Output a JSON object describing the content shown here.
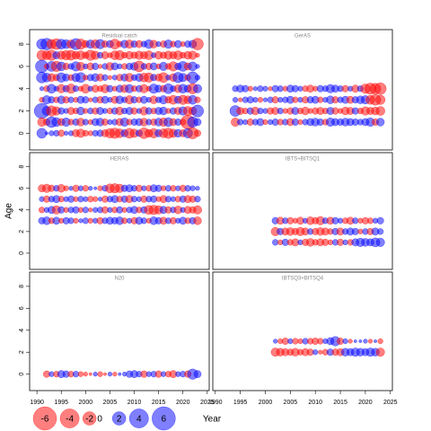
{
  "chart_data": [
    {
      "type": "bubble",
      "title": "Residual catch",
      "xlim": [
        1988.5,
        2025.4
      ],
      "ylim": [
        -1.5,
        9.3
      ],
      "yticks": [
        0,
        2,
        4,
        6,
        8
      ],
      "x": [
        1991,
        1992,
        1993,
        1994,
        1995,
        1996,
        1997,
        1998,
        1999,
        2000,
        2001,
        2002,
        2003,
        2004,
        2005,
        2006,
        2007,
        2008,
        2009,
        2010,
        2011,
        2012,
        2013,
        2014,
        2015,
        2016,
        2017,
        2018,
        2019,
        2020,
        2021,
        2022,
        2023
      ],
      "rows": [
        {
          "y": 8,
          "values": [
            1.2,
            1.5,
            -1.0,
            -1.3,
            1.1,
            0.9,
            -0.8,
            1.4,
            -1.2,
            -0.6,
            0.8,
            -0.9,
            1.0,
            -0.5,
            0.6,
            -1.1,
            -0.4,
            0.7,
            -0.8,
            0.5,
            -0.6,
            0.4,
            0.9,
            -0.7,
            0.3,
            -0.5,
            0.8,
            -0.4,
            0.6,
            -0.3,
            0.5,
            0.7,
            -1.5
          ]
        },
        {
          "y": 7,
          "values": [
            -1.1,
            -0.9,
            -1.2,
            0.6,
            -0.8,
            -1.0,
            -1.1,
            -0.7,
            -0.9,
            -0.5,
            -1.2,
            -0.8,
            0.4,
            -0.6,
            -0.3,
            -0.9,
            -1.0,
            -0.4,
            -0.7,
            -0.5,
            -0.8,
            -0.6,
            -0.9,
            0.3,
            -0.7,
            -0.5,
            -0.8,
            -0.6,
            -0.9,
            -0.4,
            -0.7,
            -0.8,
            -0.2
          ]
        },
        {
          "y": 6,
          "values": [
            1.8,
            -0.3,
            1.1,
            -1.2,
            0.9,
            -0.5,
            0.4,
            1.0,
            -0.8,
            0.3,
            -0.6,
            0.5,
            -0.2,
            0.4,
            -0.7,
            0.6,
            0.3,
            -0.4,
            0.5,
            0.7,
            -1.3,
            0.4,
            -0.5,
            0.6,
            -0.3,
            0.8,
            -0.4,
            -1.0,
            0.5,
            1.1,
            -0.6,
            0.9,
            0.2
          ]
        },
        {
          "y": 5,
          "values": [
            1.3,
            0.9,
            -0.7,
            -0.5,
            1.0,
            0.6,
            -0.4,
            0.8,
            1.1,
            -0.3,
            0.5,
            0.7,
            -0.6,
            0.4,
            -0.2,
            0.3,
            -0.5,
            0.6,
            -0.8,
            0.4,
            0.7,
            -0.9,
            -1.0,
            0.5,
            -0.6,
            -1.1,
            0.3,
            -0.7,
            1.2,
            0.8,
            -0.4,
            1.5,
            0.3
          ]
        },
        {
          "y": 4,
          "values": [
            0.2,
            -0.4,
            0.9,
            0.3,
            -0.8,
            0.5,
            -1.0,
            0.4,
            -0.3,
            -0.9,
            0.3,
            -0.6,
            -0.4,
            -0.8,
            0.5,
            -0.3,
            0.6,
            -0.7,
            0.8,
            -0.4,
            0.5,
            -0.8,
            -0.3,
            1.0,
            0.6,
            -0.5,
            1.1,
            0.4,
            -0.7,
            0.9,
            0.6,
            -1.2,
            0.8
          ]
        },
        {
          "y": 3,
          "values": [
            -0.3,
            0.8,
            0.5,
            -0.4,
            0.7,
            -0.5,
            0.4,
            -0.3,
            0.6,
            0.5,
            -0.2,
            0.4,
            -0.5,
            0.6,
            0.3,
            -0.6,
            0.7,
            0.4,
            -0.8,
            0.5,
            -0.4,
            0.6,
            0.3,
            -0.7,
            0.4,
            0.8,
            -0.5,
            -0.9,
            0.6,
            -1.0,
            -0.7,
            0.9,
            -0.4
          ]
        },
        {
          "y": 2,
          "values": [
            2.5,
            0.9,
            -1.2,
            -0.8,
            0.5,
            0.3,
            -0.6,
            -0.4,
            0.7,
            -0.3,
            0.4,
            -0.5,
            0.6,
            0.3,
            -0.4,
            0.5,
            -0.7,
            0.4,
            0.6,
            -0.5,
            0.3,
            -0.8,
            0.5,
            -0.4,
            0.6,
            0.7,
            -0.3,
            0.5,
            -0.6,
            0.8,
            -0.9,
            -0.7,
            1.6
          ]
        },
        {
          "y": 1,
          "values": [
            -0.8,
            -0.5,
            1.3,
            0.9,
            -0.6,
            0.8,
            -0.4,
            0.5,
            -0.7,
            0.4,
            -0.3,
            0.6,
            0.7,
            -0.5,
            0.3,
            0.4,
            -0.6,
            0.8,
            -0.4,
            0.5,
            0.6,
            -0.7,
            0.4,
            -0.5,
            0.7,
            -0.8,
            0.9,
            -0.6,
            0.5,
            -0.4,
            -2.2,
            1.2,
            0.6
          ]
        },
        {
          "y": 0,
          "values": [
            1.1,
            0.1,
            0.3,
            0.4,
            -0.5,
            0.2,
            0.3,
            -0.6,
            -0.8,
            -0.4,
            -0.3,
            0.4,
            0.5,
            -0.6,
            -1.0,
            -1.2,
            -0.9,
            0.6,
            -1.1,
            -0.8,
            0.5,
            -1.3,
            -0.7,
            -1.0,
            0.6,
            -0.9,
            -1.2,
            -0.8,
            0.7,
            -0.6,
            1.0,
            -1.4,
            -0.5
          ]
        }
      ]
    },
    {
      "type": "bubble",
      "title": "GerAS",
      "xlim": [
        1989.5,
        2025.4
      ],
      "ylim": [
        -1.5,
        9.3
      ],
      "x": [
        1994,
        1995,
        1996,
        1997,
        1998,
        1999,
        2000,
        2001,
        2002,
        2003,
        2004,
        2005,
        2006,
        2007,
        2008,
        2009,
        2010,
        2011,
        2012,
        2013,
        2014,
        2015,
        2016,
        2017,
        2018,
        2019,
        2020,
        2021,
        2022,
        2023
      ],
      "rows": [
        {
          "y": 4,
          "values": [
            0.4,
            0.6,
            0.5,
            -0.3,
            0.2,
            0.4,
            0.3,
            -0.2,
            0.5,
            0.4,
            -0.3,
            0.6,
            0.5,
            0.3,
            -0.4,
            -0.6,
            -0.3,
            0.5,
            0.4,
            0.8,
            0.6,
            0.4,
            -0.5,
            0.3,
            -0.6,
            0.4,
            -1.0,
            -1.4,
            -1.3,
            -1.5
          ]
        },
        {
          "y": 3,
          "values": [
            0.3,
            -0.2,
            0.4,
            0.5,
            0.3,
            -0.3,
            0.2,
            0.4,
            -0.5,
            0.3,
            0.4,
            0.6,
            -0.4,
            0.3,
            -0.5,
            0.5,
            0.6,
            -0.4,
            0.3,
            0.7,
            -0.5,
            0.4,
            0.6,
            -0.6,
            0.5,
            0.7,
            0.8,
            -0.9,
            -1.3,
            -1.0
          ]
        },
        {
          "y": 2,
          "values": [
            1.3,
            -0.6,
            -0.4,
            0.5,
            -0.7,
            0.4,
            0.3,
            -0.5,
            -0.6,
            0.4,
            -0.3,
            -0.5,
            0.6,
            -0.4,
            -0.7,
            -0.3,
            -0.5,
            -0.6,
            -0.4,
            0.6,
            -0.5,
            -0.3,
            -0.7,
            -0.6,
            0.5,
            -0.4,
            -0.8,
            -0.6,
            -0.7,
            -0.9
          ]
        },
        {
          "y": 1,
          "values": [
            -0.8,
            0.4,
            0.3,
            -0.5,
            0.4,
            0.6,
            -0.3,
            0.3,
            0.5,
            -0.4,
            0.4,
            -0.6,
            0.5,
            -0.3,
            0.4,
            0.6,
            0.7,
            0.5,
            -0.4,
            0.8,
            0.6,
            0.5,
            0.7,
            0.6,
            0.5,
            0.4,
            0.6,
            0.8,
            -0.5,
            0.7
          ]
        }
      ]
    },
    {
      "type": "bubble",
      "title": "HERAS",
      "xlim": [
        1988.5,
        2025.4
      ],
      "ylim": [
        -1.5,
        9.3
      ],
      "yticks": [
        0,
        2,
        4,
        6,
        8
      ],
      "x": [
        1991,
        1992,
        1993,
        1994,
        1995,
        1996,
        1997,
        1998,
        1999,
        2000,
        2001,
        2002,
        2003,
        2004,
        2005,
        2006,
        2007,
        2008,
        2009,
        2010,
        2011,
        2012,
        2013,
        2014,
        2015,
        2016,
        2017,
        2018,
        2019,
        2020,
        2021,
        2022,
        2023
      ],
      "rows": [
        {
          "y": 6,
          "values": [
            -0.6,
            -0.8,
            -0.5,
            0.4,
            -0.7,
            -0.3,
            0.2,
            -0.5,
            0.3,
            -0.4,
            0.2,
            0.1,
            -0.3,
            0.4,
            -0.9,
            -1.0,
            -0.8,
            0.5,
            0.6,
            0.4,
            -0.5,
            0.3,
            -0.4,
            0.6,
            0.5,
            -0.3,
            0.4,
            -0.4,
            0.3,
            -0.5,
            0.4,
            0.3,
            0.2
          ]
        },
        {
          "y": 5,
          "values": [
            0.3,
            -0.5,
            0.4,
            0.6,
            -0.4,
            0.3,
            0.5,
            -0.3,
            0.4,
            0.3,
            -0.4,
            -0.3,
            0.2,
            -0.5,
            0.4,
            0.6,
            -0.4,
            0.5,
            -0.6,
            0.4,
            0.3,
            -0.5,
            0.4,
            0.5,
            -0.3,
            -0.6,
            0.4,
            0.3,
            -0.4,
            0.5,
            -0.6,
            -0.5,
            0.4
          ]
        },
        {
          "y": 4,
          "values": [
            -0.4,
            0.3,
            0.6,
            -0.8,
            0.5,
            -0.3,
            0.4,
            0.5,
            -0.3,
            0.4,
            -0.2,
            0.3,
            0.4,
            -0.5,
            0.3,
            -0.4,
            0.5,
            -0.3,
            0.4,
            0.6,
            -0.4,
            0.5,
            -0.9,
            -1.0,
            -0.8,
            0.6,
            -0.5,
            0.4,
            -0.7,
            0.3,
            -0.6,
            -0.5,
            -0.8
          ]
        },
        {
          "y": 3,
          "values": [
            0.5,
            0.7,
            -0.4,
            0.6,
            -0.3,
            0.5,
            0.4,
            -0.3,
            0.2,
            0.4,
            -0.3,
            0.3,
            -0.5,
            0.4,
            0.6,
            0.5,
            0.7,
            -0.4,
            0.3,
            -0.5,
            0.6,
            0.4,
            -0.3,
            0.7,
            0.5,
            -0.6,
            0.4,
            -0.5,
            0.3,
            0.6,
            -0.4,
            0.5,
            -0.7
          ]
        }
      ]
    },
    {
      "type": "bubble",
      "title": "IBTS+BITSQ1",
      "xlim": [
        1989.5,
        2025.4
      ],
      "ylim": [
        -1.5,
        9.3
      ],
      "x": [
        2002,
        2003,
        2004,
        2005,
        2006,
        2007,
        2008,
        2009,
        2010,
        2011,
        2012,
        2013,
        2014,
        2015,
        2016,
        2017,
        2018,
        2019,
        2020,
        2021,
        2022,
        2023
      ],
      "rows": [
        {
          "y": 3,
          "values": [
            0.5,
            -0.6,
            0.4,
            -0.5,
            -0.3,
            -0.6,
            0.3,
            -0.7,
            -0.5,
            -0.8,
            0.4,
            -0.6,
            0.5,
            0.3,
            -0.4,
            -0.6,
            0.4,
            -0.3,
            -0.5,
            -0.4,
            0.3,
            0.5
          ]
        },
        {
          "y": 2,
          "values": [
            -0.8,
            0.5,
            -0.6,
            -0.7,
            -0.5,
            -0.8,
            -0.6,
            0.4,
            -0.5,
            -0.7,
            -0.6,
            -0.4,
            0.5,
            -0.6,
            0.4,
            0.6,
            0.5,
            -0.3,
            0.4,
            -0.5,
            0.6,
            0.4
          ]
        },
        {
          "y": 1,
          "values": [
            0.4,
            -0.3,
            0.5,
            -0.4,
            -0.6,
            0.3,
            -0.5,
            -0.7,
            -0.4,
            -0.6,
            -0.5,
            -0.3,
            0.4,
            -0.5,
            0.3,
            -0.4,
            0.6,
            0.8,
            0.7,
            0.6,
            0.9,
            0.8
          ]
        }
      ]
    },
    {
      "type": "bubble",
      "title": "N20",
      "xlim": [
        1988.5,
        2025.4
      ],
      "ylim": [
        -1.5,
        9.3
      ],
      "yticks": [
        0,
        2,
        4,
        6,
        8
      ],
      "xticks": [
        1990,
        1995,
        2000,
        2005,
        2010,
        2015,
        2020,
        2025
      ],
      "x": [
        1992,
        1993,
        1994,
        1995,
        1996,
        1997,
        1998,
        1999,
        2000,
        2001,
        2002,
        2003,
        2004,
        2005,
        2006,
        2007,
        2008,
        2009,
        2010,
        2011,
        2012,
        2013,
        2014,
        2015,
        2016,
        2017,
        2018,
        2019,
        2020,
        2021,
        2022,
        2023
      ],
      "rows": [
        {
          "y": 0,
          "values": [
            -0.5,
            0.3,
            -0.4,
            0.6,
            0.5,
            -0.4,
            0.4,
            -0.3,
            -0.2,
            -0.1,
            0.2,
            -0.3,
            -0.1,
            0.2,
            -0.2,
            0.1,
            0.2,
            0.5,
            0.6,
            0.4,
            -0.5,
            0.3,
            0.4,
            -0.5,
            0.3,
            -0.4,
            -0.6,
            0.3,
            0.4,
            -0.5,
            1.2,
            0.6
          ]
        }
      ]
    },
    {
      "type": "bubble",
      "title": "IBTSQ3+BITSQ4",
      "xlim": [
        1989.5,
        2025.4
      ],
      "ylim": [
        -1.5,
        9.3
      ],
      "xticks": [
        1990,
        1995,
        2000,
        2005,
        2010,
        2015,
        2020,
        2025
      ],
      "x": [
        2002,
        2003,
        2004,
        2005,
        2006,
        2007,
        2008,
        2009,
        2010,
        2011,
        2012,
        2013,
        2014,
        2015,
        2016,
        2017,
        2018,
        2019,
        2020,
        2021,
        2022,
        2023
      ],
      "rows": [
        {
          "y": 3,
          "values": [
            0.2,
            -0.3,
            -0.5,
            0.3,
            -0.4,
            -0.3,
            0.4,
            -0.4,
            -0.5,
            -0.4,
            0.3,
            0.6,
            1.0,
            -0.5,
            0.3,
            -0.2,
            0.1,
            0.1,
            0.2,
            -0.2,
            0.1,
            -0.3
          ]
        },
        {
          "y": 2,
          "values": [
            -0.8,
            -0.7,
            -0.6,
            -0.5,
            -0.7,
            -0.4,
            -0.6,
            -0.5,
            0.3,
            -0.2,
            -0.4,
            0.5,
            -0.5,
            -0.6,
            0.7,
            0.6,
            0.8,
            0.7,
            0.6,
            0.8,
            0.7,
            -0.8
          ]
        }
      ]
    }
  ],
  "xlabel": "Year",
  "ylabel": "Age",
  "positive_color": "#0000ff",
  "negative_color": "#ff0000",
  "legend": {
    "values": [
      -6,
      -4,
      -2,
      0,
      2,
      4,
      6
    ]
  }
}
